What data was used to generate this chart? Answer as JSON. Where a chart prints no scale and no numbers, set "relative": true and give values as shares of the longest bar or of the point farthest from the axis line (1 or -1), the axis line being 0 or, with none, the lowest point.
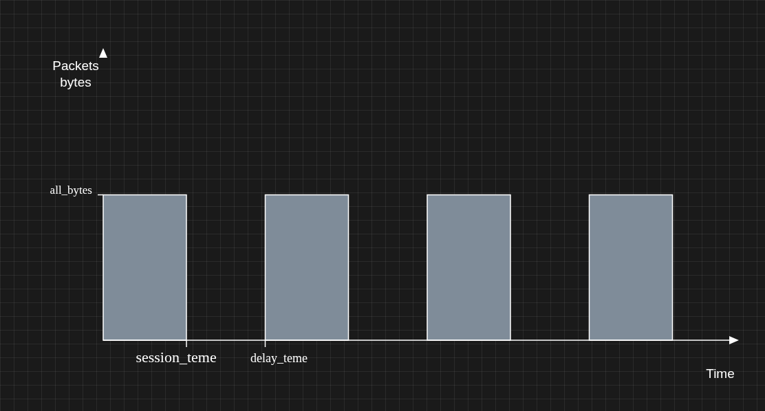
{
  "chart_data": {
    "type": "bar",
    "relative": true,
    "categories": [
      null,
      null,
      null,
      null
    ],
    "values": [
      1,
      1,
      1,
      1
    ],
    "color": "#7f8c99",
    "xlabel": "Time",
    "annotations": [
      "Packets\nbytes",
      "all_bytes",
      "session_teme",
      "delay_teme"
    ]
  }
}
